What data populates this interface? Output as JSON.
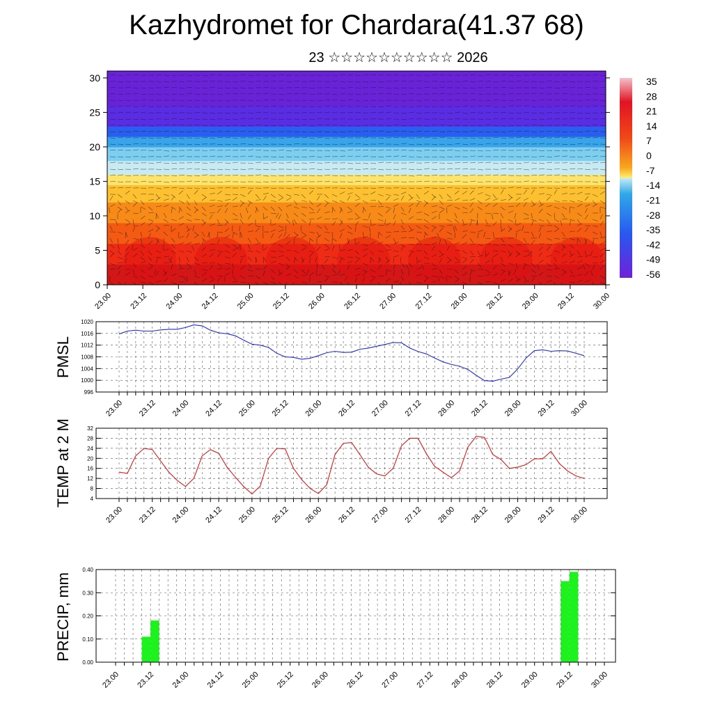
{
  "title": "Kazhydromet for Chardara(41.37 68)",
  "subtitle": "23 ☆☆☆☆☆☆☆☆☆☆ 2026",
  "time_labels": [
    "23.00",
    "23.12",
    "24.00",
    "24.12",
    "25.00",
    "25.12",
    "26.00",
    "26.12",
    "27.00",
    "27.12",
    "28.00",
    "28.12",
    "29.00",
    "29.12",
    "30.00"
  ],
  "chart_data": [
    {
      "type": "heatmap",
      "name": "cross-section",
      "y_ticks": [
        "0",
        "5",
        "10",
        "15",
        "20",
        "25",
        "30"
      ],
      "ylim": [
        0,
        31
      ],
      "colorbar_labels": [
        "35",
        "28",
        "21",
        "14",
        "7",
        "0",
        "-7",
        "-14",
        "-21",
        "-28",
        "-35",
        "-42",
        "-49",
        "-56"
      ],
      "colorbar_colors": [
        "#f4c0c8",
        "#e11424",
        "#f04818",
        "#f8a820",
        "#fff070",
        "#c8ecf4",
        "#30a8e8",
        "#2858f0",
        "#7020d8"
      ],
      "colorbar_stops": [
        0,
        0.12,
        0.3,
        0.45,
        0.5,
        0.5,
        0.58,
        0.78,
        1.0
      ],
      "profile": [
        [
          0,
          "#d41616"
        ],
        [
          3,
          "#ef2b16"
        ],
        [
          6,
          "#f45a12"
        ],
        [
          9,
          "#f88a18"
        ],
        [
          12,
          "#fcc030"
        ],
        [
          14.5,
          "#fee46a"
        ],
        [
          16,
          "#c8eaf2"
        ],
        [
          18,
          "#7ccff0"
        ],
        [
          20,
          "#38a4ec"
        ],
        [
          21.5,
          "#2a5ef0"
        ],
        [
          23,
          "#5a2ce4"
        ],
        [
          26,
          "#6a22d8"
        ],
        [
          31,
          "#7a2ce8"
        ]
      ]
    },
    {
      "type": "line",
      "name": "pmsl",
      "ylabel": "PMSL",
      "y_ticks": [
        "1020",
        "1016",
        "1012",
        "1008",
        "1004",
        "1000",
        "996"
      ],
      "ylim": [
        996,
        1020
      ],
      "series_color": "#1f2bd6",
      "x": [
        0,
        1,
        2,
        3,
        4,
        5,
        6,
        7,
        8,
        9,
        10,
        11,
        12,
        13,
        14,
        15,
        16,
        17,
        18,
        19,
        20,
        21,
        22,
        23,
        24,
        25,
        26,
        27,
        28,
        29,
        30,
        31,
        32,
        33,
        34,
        35,
        36,
        37,
        38,
        39,
        40,
        41,
        42,
        43,
        44,
        45,
        46,
        47,
        48,
        49,
        50,
        51,
        52,
        53,
        54,
        55,
        56
      ],
      "values": [
        1015.8,
        1016.8,
        1017.1,
        1016.8,
        1016.8,
        1017.2,
        1017.4,
        1017.4,
        1018.0,
        1018.9,
        1018.6,
        1017.1,
        1016.2,
        1015.9,
        1015.2,
        1013.7,
        1012.3,
        1012.0,
        1011.2,
        1009.2,
        1008.0,
        1007.8,
        1007.2,
        1007.5,
        1008.4,
        1009.4,
        1009.9,
        1009.5,
        1009.6,
        1010.6,
        1011.0,
        1011.6,
        1012.2,
        1012.9,
        1012.8,
        1011.0,
        1009.8,
        1009.0,
        1007.6,
        1006.3,
        1005.4,
        1004.8,
        1003.7,
        1001.7,
        999.9,
        999.7,
        1000.4,
        1001.0,
        1003.9,
        1007.6,
        1010.1,
        1010.4,
        1009.9,
        1010.1,
        1010.0,
        1009.2,
        1008.4
      ]
    },
    {
      "type": "line",
      "name": "temp",
      "ylabel": "TEMP at 2 M",
      "y_ticks": [
        "32",
        "28",
        "24",
        "20",
        "16",
        "12",
        "8",
        "4"
      ],
      "ylim": [
        4,
        32
      ],
      "series_color": "#e01818",
      "x": [
        0,
        1,
        2,
        3,
        4,
        5,
        6,
        7,
        8,
        9,
        10,
        11,
        12,
        13,
        14,
        15,
        16,
        17,
        18,
        19,
        20,
        21,
        22,
        23,
        24,
        25,
        26,
        27,
        28,
        29,
        30,
        31,
        32,
        33,
        34,
        35,
        36,
        37,
        38,
        39,
        40,
        41,
        42,
        43,
        44,
        45,
        46,
        47,
        48,
        49,
        50,
        51,
        52,
        53,
        54,
        55,
        56
      ],
      "values": [
        14.5,
        14.0,
        21.0,
        24.0,
        23.5,
        19.0,
        14.5,
        11.2,
        8.8,
        12.0,
        21.0,
        23.5,
        22.0,
        16.5,
        12.5,
        8.8,
        5.8,
        9.0,
        20.0,
        24.0,
        23.8,
        16.0,
        11.5,
        8.0,
        6.0,
        9.5,
        21.5,
        26.0,
        26.3,
        21.5,
        16.5,
        13.8,
        13.0,
        16.0,
        25.0,
        28.0,
        28.0,
        21.8,
        16.8,
        14.5,
        12.3,
        15.0,
        24.5,
        28.8,
        28.3,
        21.5,
        19.5,
        16.0,
        16.5,
        17.5,
        19.8,
        19.8,
        22.8,
        18.0,
        15.0,
        13.0,
        12.0
      ]
    },
    {
      "type": "bar",
      "name": "precip",
      "ylabel": "PRECIP, mm",
      "y_ticks": [
        "0.40",
        "0.30",
        "0.20",
        "0.10",
        "0.00"
      ],
      "ylim": [
        0,
        0.4
      ],
      "bar_color": "#1ef21e",
      "bins": [
        {
          "start": 3,
          "end": 4,
          "value": 0.11
        },
        {
          "start": 4,
          "end": 5,
          "value": 0.18
        },
        {
          "start": 51,
          "end": 52,
          "value": 0.35
        },
        {
          "start": 52,
          "end": 53,
          "value": 0.39
        }
      ]
    }
  ],
  "colors": {
    "axis": "#000000",
    "grid": "#444444"
  }
}
